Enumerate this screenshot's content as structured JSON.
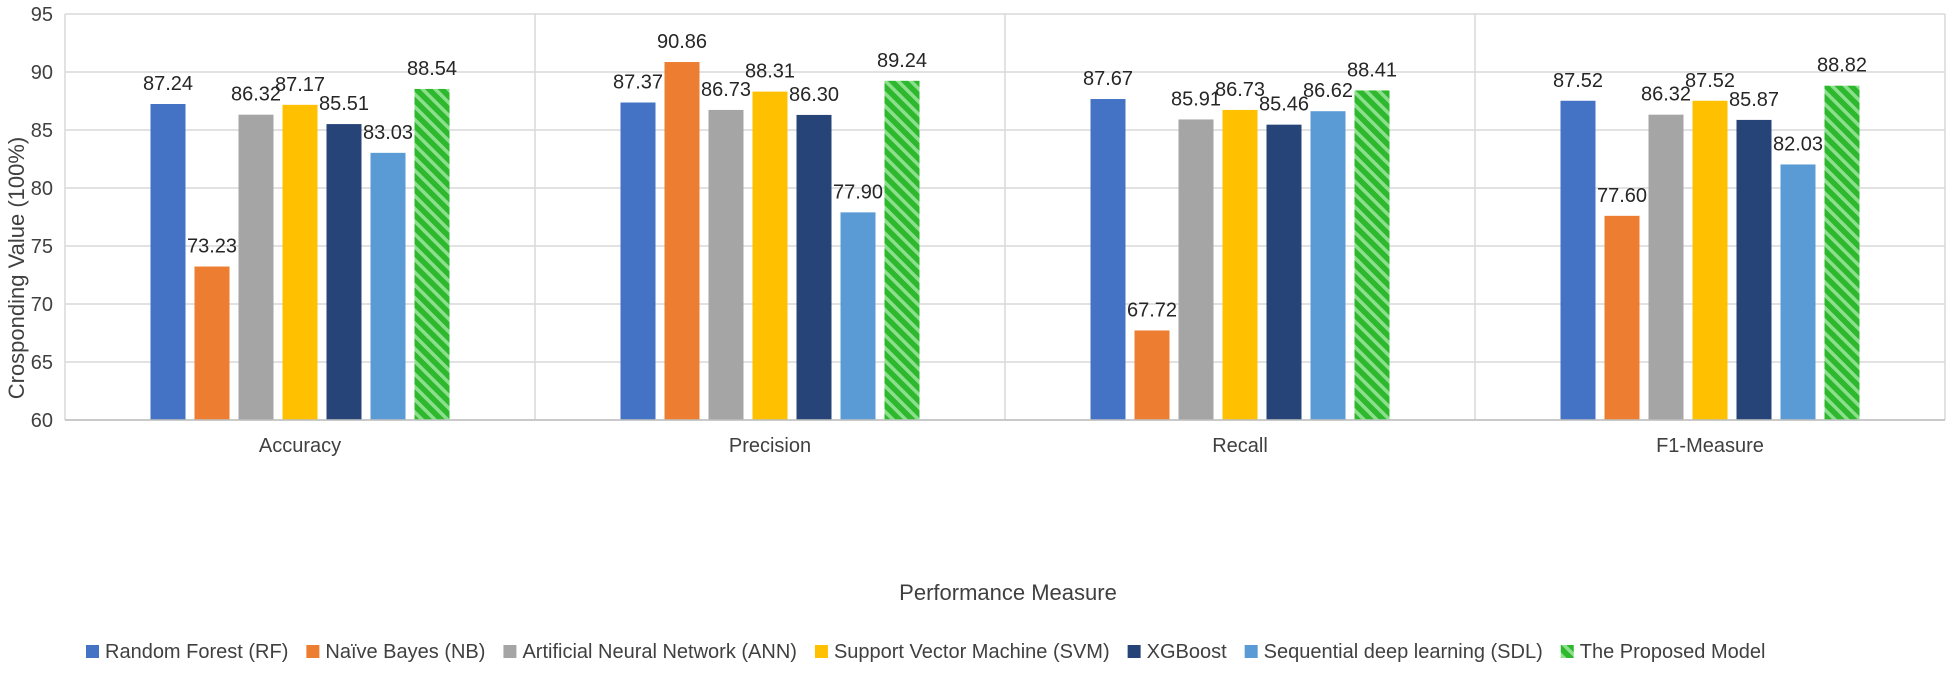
{
  "chart_data": {
    "type": "bar",
    "categories": [
      "Accuracy",
      "Precision",
      "Recall",
      "F1-Measure"
    ],
    "series": [
      {
        "name": "Random Forest (RF)",
        "color": "#4472C4",
        "values": [
          87.24,
          87.37,
          87.67,
          87.52
        ],
        "labels": [
          "87.24",
          "87.37",
          "87.67",
          "87.52"
        ]
      },
      {
        "name": "Naïve Bayes (NB)",
        "color": "#ED7D31",
        "values": [
          73.23,
          90.86,
          67.72,
          77.6
        ],
        "labels": [
          "73.23",
          "90.86",
          "67.72",
          "77.60"
        ]
      },
      {
        "name": "Artificial Neural Network (ANN)",
        "color": "#A5A5A5",
        "values": [
          86.32,
          86.73,
          85.91,
          86.32
        ],
        "labels": [
          "86.32",
          "86.73",
          "85.91",
          "86.32"
        ]
      },
      {
        "name": "Support Vector Machine (SVM)",
        "color": "#FFC000",
        "values": [
          87.17,
          88.31,
          86.73,
          87.52
        ],
        "labels": [
          "87.17",
          "88.31",
          "86.73",
          "87.52"
        ]
      },
      {
        "name": "XGBoost",
        "color": "#264478",
        "values": [
          85.51,
          86.3,
          85.46,
          85.87
        ],
        "labels": [
          "85.51",
          "86.30",
          "85.46",
          "85.87"
        ]
      },
      {
        "name": "Sequential deep learning (SDL)",
        "color": "#5B9BD5",
        "values": [
          83.03,
          77.9,
          86.62,
          82.03
        ],
        "labels": [
          "83.03",
          "77.90",
          "86.62",
          "82.03"
        ]
      },
      {
        "name": "The Proposed Model",
        "color": "#2EB82E",
        "pattern": "diagonal-stripes",
        "values": [
          88.54,
          89.24,
          88.41,
          88.82
        ],
        "labels": [
          "88.54",
          "89.24",
          "88.41",
          "88.82"
        ]
      }
    ],
    "xlabel": "Performance Measure",
    "ylabel": "Crosponding Value (100%)",
    "ylim": [
      60,
      95
    ],
    "yticks": [
      "60",
      "65",
      "70",
      "75",
      "80",
      "85",
      "90",
      "95"
    ],
    "grid": true,
    "legend_position": "bottom"
  }
}
